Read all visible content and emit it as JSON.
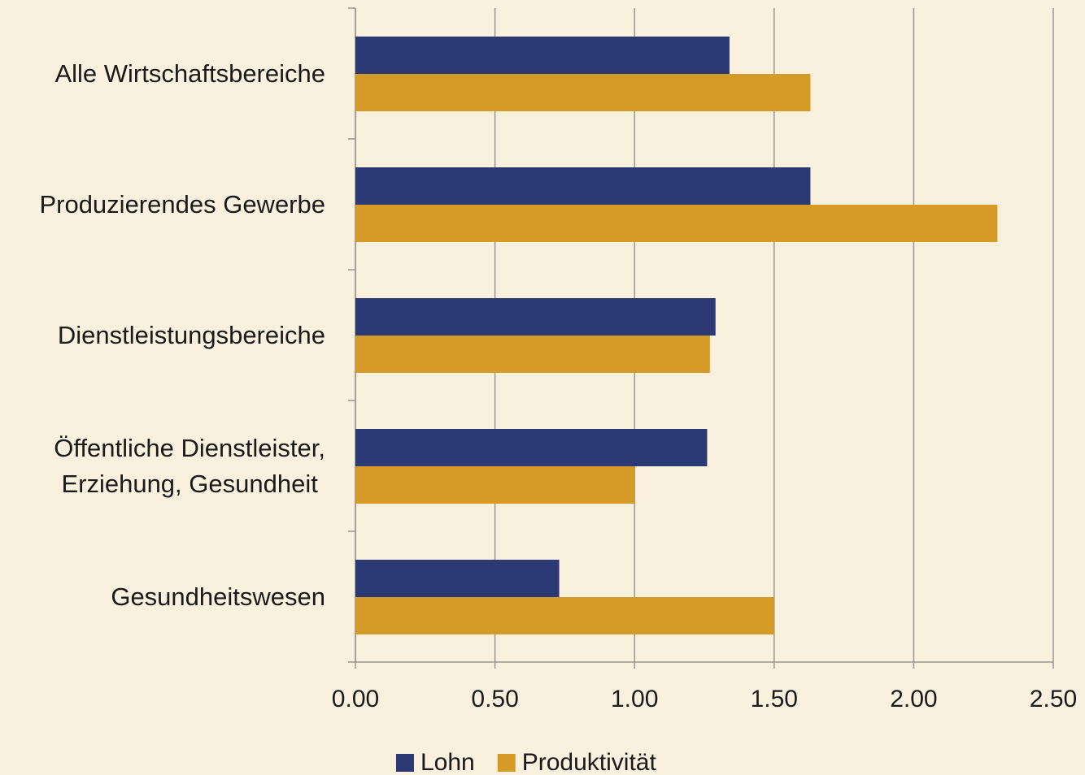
{
  "chart_data": {
    "type": "barh",
    "categories": [
      "Alle Wirtschaftsbereiche",
      "Produzierendes Gewerbe",
      "Dienstleistungsbereiche",
      "Öffentliche Dienstleister,\nErziehung, Gesundheit",
      "Gesundheitswesen"
    ],
    "series": [
      {
        "name": "Lohn",
        "color": "#2b3a74",
        "values": [
          1.34,
          1.63,
          1.29,
          1.26,
          0.73
        ]
      },
      {
        "name": "Produktivität",
        "color": "#d69a27",
        "values": [
          1.63,
          2.3,
          1.27,
          1.0,
          1.5
        ]
      }
    ],
    "xlim": [
      0,
      2.5
    ],
    "xticks": [
      {
        "value": 0,
        "label": "0.00"
      },
      {
        "value": 0.5,
        "label": "0.50"
      },
      {
        "value": 1,
        "label": "1.00"
      },
      {
        "value": 1.5,
        "label": "1.50"
      },
      {
        "value": 2,
        "label": "2.00"
      },
      {
        "value": 2.5,
        "label": "2.50"
      }
    ],
    "grid": true,
    "legend": "bottom"
  }
}
